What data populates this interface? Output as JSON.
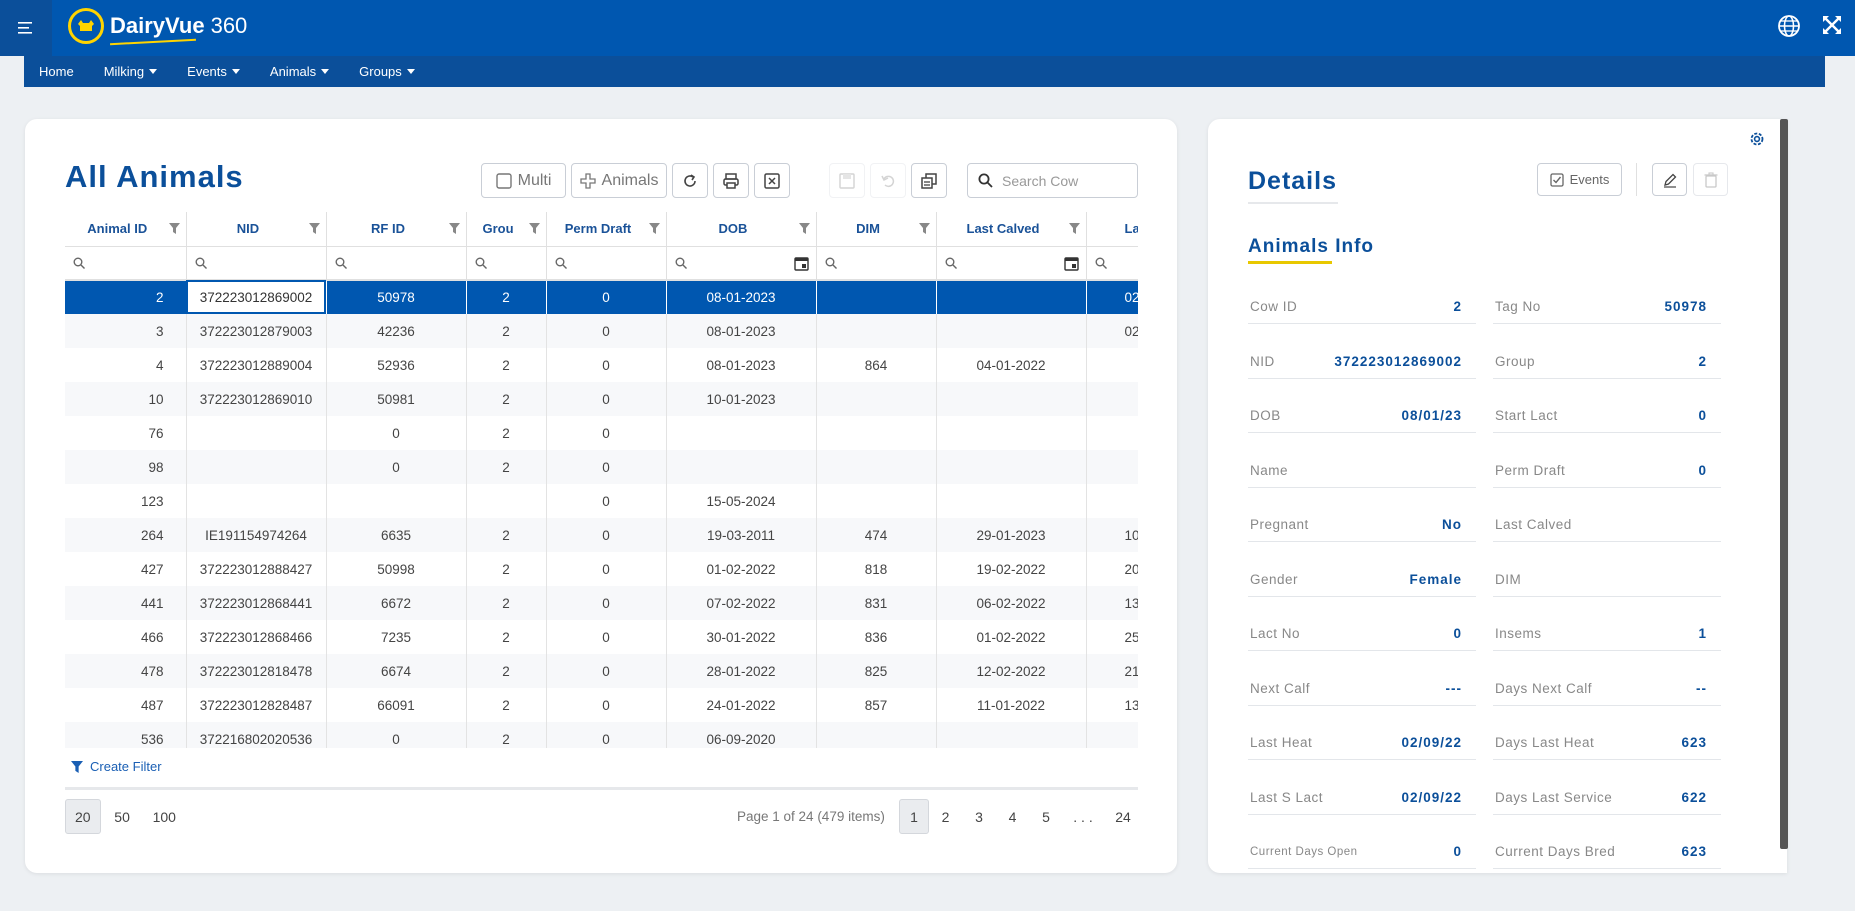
{
  "app": {
    "brand_bold": "DairyVue",
    "brand_num": "360"
  },
  "menu": [
    {
      "label": "Home",
      "caret": false
    },
    {
      "label": "Milking",
      "caret": true
    },
    {
      "label": "Events",
      "caret": true
    },
    {
      "label": "Animals",
      "caret": true
    },
    {
      "label": "Groups",
      "caret": true
    }
  ],
  "main": {
    "title": "All Animals",
    "toolbar": {
      "multi_label": "Multi",
      "animals_label": "Animals",
      "search_placeholder": "Search Cow"
    },
    "columns": [
      "Animal ID",
      "NID",
      "RF ID",
      "Grou",
      "Perm Draft",
      "DOB",
      "DIM",
      "Last Calved",
      "La"
    ],
    "rows": [
      [
        "2",
        "372223012869002",
        "50978",
        "2",
        "0",
        "08-01-2023",
        "",
        "",
        "02"
      ],
      [
        "3",
        "372223012879003",
        "42236",
        "2",
        "0",
        "08-01-2023",
        "",
        "",
        "02"
      ],
      [
        "4",
        "372223012889004",
        "52936",
        "2",
        "0",
        "08-01-2023",
        "864",
        "04-01-2022",
        ""
      ],
      [
        "10",
        "372223012869010",
        "50981",
        "2",
        "0",
        "10-01-2023",
        "",
        "",
        ""
      ],
      [
        "76",
        "",
        "0",
        "2",
        "0",
        "",
        "",
        "",
        ""
      ],
      [
        "98",
        "",
        "0",
        "2",
        "0",
        "",
        "",
        "",
        ""
      ],
      [
        "123",
        "",
        "",
        "",
        "0",
        "15-05-2024",
        "",
        "",
        ""
      ],
      [
        "264",
        "IE191154974264",
        "6635",
        "2",
        "0",
        "19-03-2011",
        "474",
        "29-01-2023",
        "10"
      ],
      [
        "427",
        "372223012888427",
        "50998",
        "2",
        "0",
        "01-02-2022",
        "818",
        "19-02-2022",
        "20"
      ],
      [
        "441",
        "372223012868441",
        "6672",
        "2",
        "0",
        "07-02-2022",
        "831",
        "06-02-2022",
        "13"
      ],
      [
        "466",
        "372223012868466",
        "7235",
        "2",
        "0",
        "30-01-2022",
        "836",
        "01-02-2022",
        "25"
      ],
      [
        "478",
        "372223012818478",
        "6674",
        "2",
        "0",
        "28-01-2022",
        "825",
        "12-02-2022",
        "21"
      ],
      [
        "487",
        "372223012828487",
        "66091",
        "2",
        "0",
        "24-01-2022",
        "857",
        "11-01-2022",
        "13"
      ],
      [
        "536",
        "372216802020536",
        "0",
        "2",
        "0",
        "06-09-2020",
        "",
        "",
        ""
      ]
    ],
    "create_filter": "Create Filter",
    "page_sizes": [
      "20",
      "50",
      "100"
    ],
    "page_info": "Page 1 of 24 (479 items)",
    "pages": [
      "1",
      "2",
      "3",
      "4",
      "5",
      ". . .",
      "24"
    ]
  },
  "details": {
    "title": "Details",
    "events_label": "Events",
    "section_title": "Animals Info",
    "fields": [
      {
        "label": "Cow ID",
        "value": "2"
      },
      {
        "label": "Tag No",
        "value": "50978"
      },
      {
        "label": "NID",
        "value": "372223012869002"
      },
      {
        "label": "Group",
        "value": "2"
      },
      {
        "label": "DOB",
        "value": "08/01/23"
      },
      {
        "label": "Start Lact",
        "value": "0"
      },
      {
        "label": "Name",
        "value": ""
      },
      {
        "label": "Perm Draft",
        "value": "0"
      },
      {
        "label": "Pregnant",
        "value": "No"
      },
      {
        "label": "Last Calved",
        "value": ""
      },
      {
        "label": "Gender",
        "value": "Female"
      },
      {
        "label": "DIM",
        "value": ""
      },
      {
        "label": "Lact No",
        "value": "0"
      },
      {
        "label": "Insems",
        "value": "1"
      },
      {
        "label": "Next Calf",
        "value": "---"
      },
      {
        "label": "Days Next Calf",
        "value": "--"
      },
      {
        "label": "Last Heat",
        "value": "02/09/22"
      },
      {
        "label": "Days Last Heat",
        "value": "623"
      },
      {
        "label": "Last S Lact",
        "value": "02/09/22"
      },
      {
        "label": "Days Last Service",
        "value": "622"
      },
      {
        "label": "Current Days Open",
        "value": "0"
      },
      {
        "label": "Current Days Bred",
        "value": "623"
      }
    ]
  },
  "colors": {
    "primary": "#0057b0",
    "nav": "#0b4f9a",
    "accent": "#ffd400"
  },
  "icons": [
    "menu-icon",
    "globe-icon",
    "fullscreen-icon",
    "filter-icon",
    "search-icon",
    "calendar-icon",
    "gear-icon",
    "edit-icon",
    "trash-icon"
  ]
}
